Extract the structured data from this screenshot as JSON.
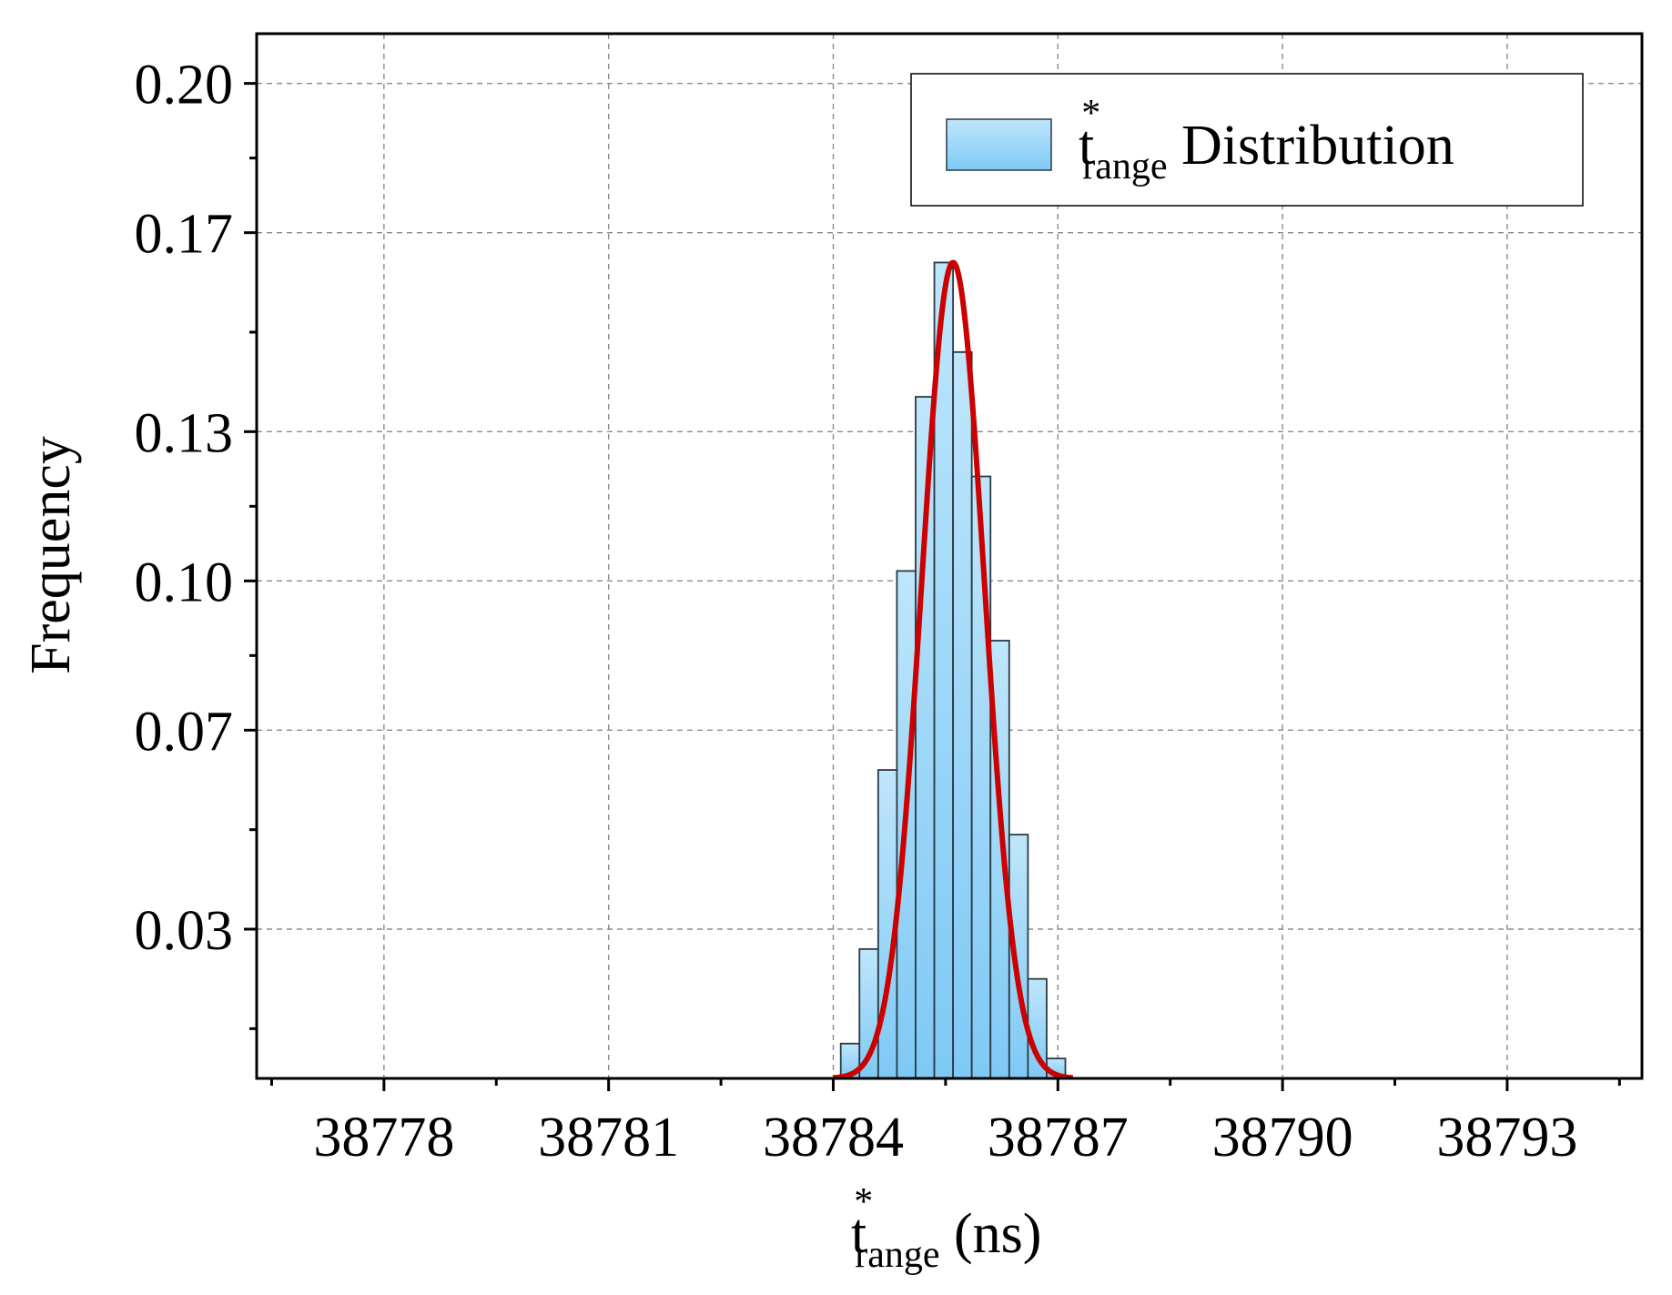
{
  "chart_data": {
    "type": "bar",
    "xlabel": {
      "base": "t",
      "sup": "*",
      "sub": "range",
      "suffix": " (ns)"
    },
    "ylabel": "Frequency",
    "legend": {
      "base": "t",
      "sup": "*",
      "sub": "range",
      "suffix": " Distribution",
      "placement": "top-right"
    },
    "xlim": [
      38776.3,
      38794.8
    ],
    "ylim": [
      0.0,
      0.21
    ],
    "x_ticks": [
      38778,
      38781,
      38784,
      38787,
      38790,
      38793
    ],
    "x_tick_labels": [
      "38778",
      "38781",
      "38784",
      "38787",
      "38790",
      "38793"
    ],
    "y_ticks": [
      0.03,
      0.07,
      0.1,
      0.13,
      0.17,
      0.2
    ],
    "y_tick_labels": [
      "0.03",
      "0.07",
      "0.10",
      "0.13",
      "0.17",
      "0.20"
    ],
    "grid": true,
    "bin_width": 0.25,
    "bins": [
      {
        "start": 38784.1,
        "value": 0.007
      },
      {
        "start": 38784.35,
        "value": 0.026
      },
      {
        "start": 38784.6,
        "value": 0.062
      },
      {
        "start": 38784.85,
        "value": 0.102
      },
      {
        "start": 38785.1,
        "value": 0.137
      },
      {
        "start": 38785.35,
        "value": 0.164
      },
      {
        "start": 38785.6,
        "value": 0.146
      },
      {
        "start": 38785.85,
        "value": 0.121
      },
      {
        "start": 38786.1,
        "value": 0.088
      },
      {
        "start": 38786.35,
        "value": 0.049
      },
      {
        "start": 38786.6,
        "value": 0.02
      },
      {
        "start": 38786.85,
        "value": 0.004
      }
    ],
    "fit_curve": {
      "type": "normal",
      "mean": 38785.6,
      "sd": 0.42,
      "peak": 0.164,
      "x_range": [
        38784.0,
        38787.2
      ],
      "color": "#cc0000"
    },
    "colors": {
      "bar_top": "#bfe6fb",
      "bar_bottom": "#7ec9f5",
      "bar_edge": "#2a3a44",
      "grid": "#8a8a8a",
      "fit": "#cc0000"
    }
  }
}
